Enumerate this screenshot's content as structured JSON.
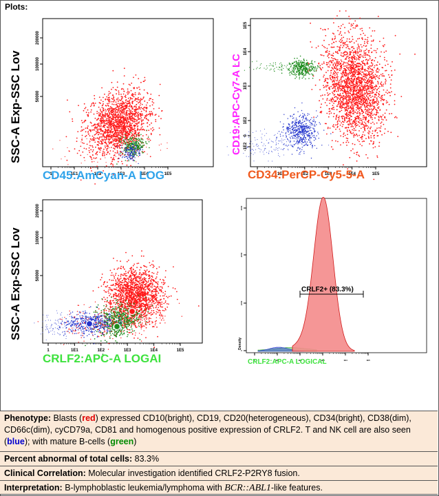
{
  "header": {
    "title": "Plots:"
  },
  "colors": {
    "blasts": "#ff1a1a",
    "tnk": "#2233cc",
    "bcells": "#1e8c1e",
    "cd45_label": "#2fa3ea",
    "cd19_label": "#ff20ff",
    "cd34_label": "#f05a1e",
    "crlf2_label": "#3ee23e",
    "hist_fill": "#f48b8b"
  },
  "chart_data": [
    {
      "type": "scatter",
      "title": "",
      "xlabel": "CD45:AmCyan-A LOG",
      "ylabel": "SSC-A Exp-SSC Lov",
      "x_ticks": [
        "1",
        "1E1",
        "1E2",
        "1E3",
        "1E4",
        "1E5"
      ],
      "y_ticks": [
        "50000",
        "100000",
        "200000"
      ],
      "series": [
        {
          "population": "blasts",
          "center_log_x": 3.0,
          "center_y": 38000
        },
        {
          "population": "bcells",
          "center_log_x": 3.6,
          "center_y": 8000
        },
        {
          "population": "tnk",
          "center_log_x": 3.5,
          "center_y": 6000
        }
      ]
    },
    {
      "type": "scatter",
      "title": "",
      "xlabel": "CD34:PerCP-Cy5-5-A",
      "ylabel": "CD19:APC-Cy7-A LC",
      "x_ticks": [
        "1",
        "1E1",
        "1E2",
        "1E3",
        "1E4",
        "1E5"
      ],
      "y_ticks": [
        "-1E2",
        "0",
        "1E2",
        "1E3",
        "1E4",
        "1E5"
      ],
      "series": [
        {
          "population": "blasts",
          "center_log_x": 4.0,
          "center_log_y": 3.5
        },
        {
          "population": "bcells",
          "center_log_x": 2.0,
          "center_log_y": 4.2
        },
        {
          "population": "tnk",
          "center_log_x": 2.0,
          "center_log_y": 1.0
        }
      ]
    },
    {
      "type": "scatter",
      "title": "",
      "xlabel": "CRLF2:APC-A LOGAI",
      "ylabel": "SSC-A Exp-SSC Lov",
      "x_ticks": [
        "1",
        "1E1",
        "1E2",
        "1E3",
        "1E4",
        "1E5"
      ],
      "y_ticks": [
        "50000",
        "100000",
        "200000"
      ],
      "series": [
        {
          "population": "blasts",
          "center_log_x": 3.3,
          "center_y": 35000
        },
        {
          "population": "bcells",
          "center_log_x": 2.6,
          "center_y": 8000
        },
        {
          "population": "tnk",
          "center_log_x": 1.8,
          "center_y": 8000
        }
      ]
    },
    {
      "type": "area",
      "title": "",
      "xlabel": "CRLF2:APC-A LOGICAL",
      "ylabel": "Density",
      "gate_label": "CRLF2+ (83.3%)",
      "peak_log_x": 3.25,
      "x_ticks": [
        "1",
        "1E1",
        "1E2",
        "1E3",
        "1E4",
        "1E5"
      ],
      "y_ticks": [
        "0",
        "1000",
        "2000",
        "3000"
      ]
    }
  ],
  "phenotype": {
    "label": "Phenotype:",
    "t1": " Blasts (",
    "red_word": "red",
    "t2": ") expressed CD10(bright), CD19, CD20(heterogeneous), CD34(bright), CD38(dim), CD66c(dim), cyCD79a, CD81 and homogenous positive expression of CRLF2. T and NK cell are also seen (",
    "blue_word": "blue",
    "t3": "); with mature B-cells (",
    "green_word": "green",
    "t4": ")"
  },
  "percent": {
    "label": "Percent abnormal of total cells:",
    "value": " 83.3%"
  },
  "clinical": {
    "label": "Clinical Correlation:",
    "value": " Molecular investigation identified CRLF2-P2RY8 fusion."
  },
  "interpretation": {
    "label": "Interpretation:",
    "value": " B-lymphoblastic leukemia/lymphoma with ",
    "gene": "BCR::ABL1",
    "suffix": "-like features."
  }
}
